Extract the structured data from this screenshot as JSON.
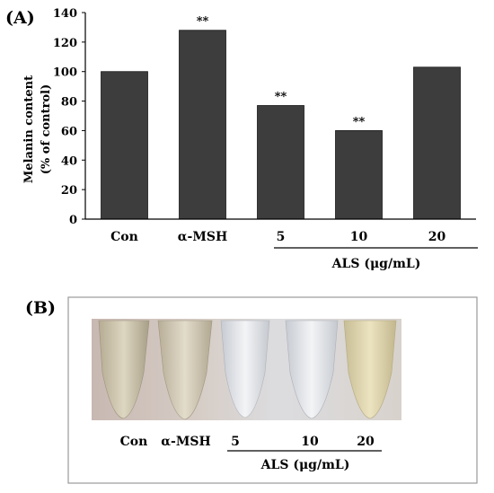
{
  "panel_a": {
    "label": "(A)",
    "group_label": "ALS (μg/mL)",
    "significance_marker": "**"
  },
  "chart_data": {
    "type": "bar",
    "categories": [
      "Con",
      "α-MSH",
      "5",
      "10",
      "20"
    ],
    "values": [
      100,
      128,
      77,
      60,
      103
    ],
    "significant": [
      false,
      true,
      true,
      true,
      false
    ],
    "title": "",
    "xlabel": "",
    "ylabel": "Melanin content (% of control)",
    "ylabel_lines": [
      "Melanin content",
      "(% of control)"
    ],
    "ylim": [
      0,
      140
    ],
    "yticks": [
      0,
      20,
      40,
      60,
      80,
      100,
      120,
      140
    ],
    "bar_color": "#3d3d3d",
    "grid": false
  },
  "panel_b": {
    "label": "(B)",
    "tube_labels": [
      "Con",
      "α-MSH",
      "5",
      "10",
      "20"
    ],
    "group_label": "ALS (μg/mL)"
  }
}
